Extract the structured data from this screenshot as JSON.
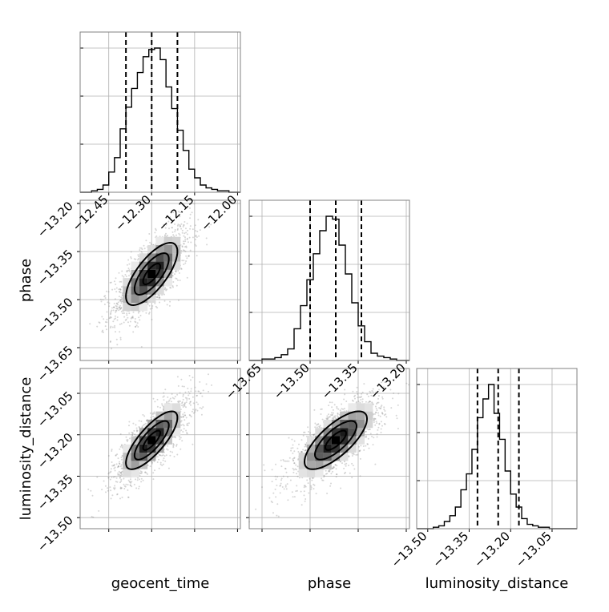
{
  "chart_data": {
    "type": "corner",
    "parameters": [
      "geocent_time",
      "phase",
      "luminosity_distance"
    ],
    "axis_labels": {
      "geocent_time": "geocent_time",
      "phase": "phase",
      "luminosity_distance": "luminosity_distance"
    },
    "ranges": {
      "geocent_time": [
        -12.55,
        -11.99
      ],
      "phase": [
        -13.69,
        -13.19
      ],
      "luminosity_distance": [
        -13.54,
        -12.96
      ]
    },
    "ticks": {
      "geocent_time": [
        -12.45,
        -12.3,
        -12.15,
        -12.0
      ],
      "phase": [
        -13.65,
        -13.5,
        -13.35,
        -13.2
      ],
      "luminosity_distance": [
        -13.5,
        -13.35,
        -13.2,
        -13.05
      ]
    },
    "tick_labels": {
      "geocent_time": [
        "−12.45",
        "−12.30",
        "−12.15",
        "−12.00"
      ],
      "phase": [
        "−13.65",
        "−13.50",
        "−13.35",
        "−13.20"
      ],
      "luminosity_distance": [
        "−13.50",
        "−13.35",
        "−13.20",
        "−13.05"
      ]
    },
    "row_tick_labels": {
      "phase": [
        "−13.20",
        "−13.35",
        "−13.50",
        "−13.65"
      ],
      "luminosity_distance": [
        "−13.05",
        "−13.20",
        "−13.35",
        "−13.50"
      ]
    },
    "histograms": {
      "geocent_time": {
        "bins": [
          -12.55,
          -12.53,
          -12.51,
          -12.49,
          -12.47,
          -12.45,
          -12.43,
          -12.41,
          -12.39,
          -12.37,
          -12.35,
          -12.33,
          -12.31,
          -12.29,
          -12.27,
          -12.25,
          -12.23,
          -12.21,
          -12.19,
          -12.17,
          -12.15,
          -12.13,
          -12.11,
          -12.09,
          -12.07,
          -12.05,
          -12.03,
          -12.01,
          -11.99
        ],
        "counts": [
          0,
          0,
          0.01,
          0.02,
          0.05,
          0.14,
          0.24,
          0.44,
          0.59,
          0.72,
          0.83,
          0.94,
          0.99,
          1.0,
          0.92,
          0.73,
          0.58,
          0.43,
          0.29,
          0.16,
          0.1,
          0.05,
          0.03,
          0.02,
          0.01,
          0.01,
          0,
          0
        ],
        "quantiles": [
          -12.39,
          -12.3,
          -12.21
        ]
      },
      "phase": {
        "bins": [
          -13.69,
          -13.67,
          -13.65,
          -13.63,
          -13.61,
          -13.59,
          -13.57,
          -13.55,
          -13.53,
          -13.51,
          -13.49,
          -13.47,
          -13.45,
          -13.43,
          -13.41,
          -13.39,
          -13.37,
          -13.35,
          -13.33,
          -13.31,
          -13.29,
          -13.27,
          -13.25,
          -13.23,
          -13.21,
          -13.19
        ],
        "counts": [
          0,
          0,
          0.01,
          0.01,
          0.02,
          0.04,
          0.08,
          0.22,
          0.38,
          0.56,
          0.74,
          0.9,
          1.0,
          0.98,
          0.8,
          0.6,
          0.4,
          0.24,
          0.13,
          0.05,
          0.03,
          0.02,
          0.01,
          0,
          0
        ],
        "quantiles": [
          -13.5,
          -13.42,
          -13.34
        ]
      },
      "luminosity_distance": {
        "bins": [
          -13.54,
          -13.52,
          -13.5,
          -13.48,
          -13.46,
          -13.44,
          -13.42,
          -13.4,
          -13.38,
          -13.36,
          -13.34,
          -13.32,
          -13.3,
          -13.28,
          -13.26,
          -13.24,
          -13.22,
          -13.2,
          -13.18,
          -13.16,
          -13.14,
          -13.12,
          -13.1,
          -13.08,
          -13.06,
          -13.04,
          -13.02,
          -13.0,
          -12.98,
          -12.96
        ],
        "counts": [
          0,
          0,
          0,
          0.01,
          0.02,
          0.05,
          0.09,
          0.15,
          0.27,
          0.38,
          0.55,
          0.77,
          0.9,
          1.0,
          0.8,
          0.62,
          0.4,
          0.24,
          0.15,
          0.07,
          0.03,
          0.02,
          0.01,
          0.01,
          0,
          0,
          0,
          0,
          0
        ],
        "quantiles": [
          -13.32,
          -13.245,
          -13.17
        ]
      }
    },
    "contours": {
      "phase_vs_geocent_time": {
        "mean": [
          -12.3,
          -13.42
        ],
        "sigma": [
          0.06,
          0.065
        ],
        "rho": 0.72,
        "levels": [
          0.5,
          1.0,
          1.5
        ]
      },
      "luminosity_distance_vs_geocent_time": {
        "mean": [
          -12.3,
          -13.22
        ],
        "sigma": [
          0.06,
          0.07
        ],
        "rho": 0.78,
        "levels": [
          0.5,
          1.0,
          1.5
        ]
      },
      "luminosity_distance_vs_phase": {
        "mean": [
          -13.42,
          -13.22
        ],
        "sigma": [
          0.065,
          0.07
        ],
        "rho": 0.74,
        "levels": [
          0.5,
          1.0,
          1.5
        ]
      }
    },
    "grid": true,
    "colors": {
      "line": "#000000",
      "points": "#8a8a8a",
      "grid": "#b0b0b0",
      "frame": "#808080"
    }
  }
}
